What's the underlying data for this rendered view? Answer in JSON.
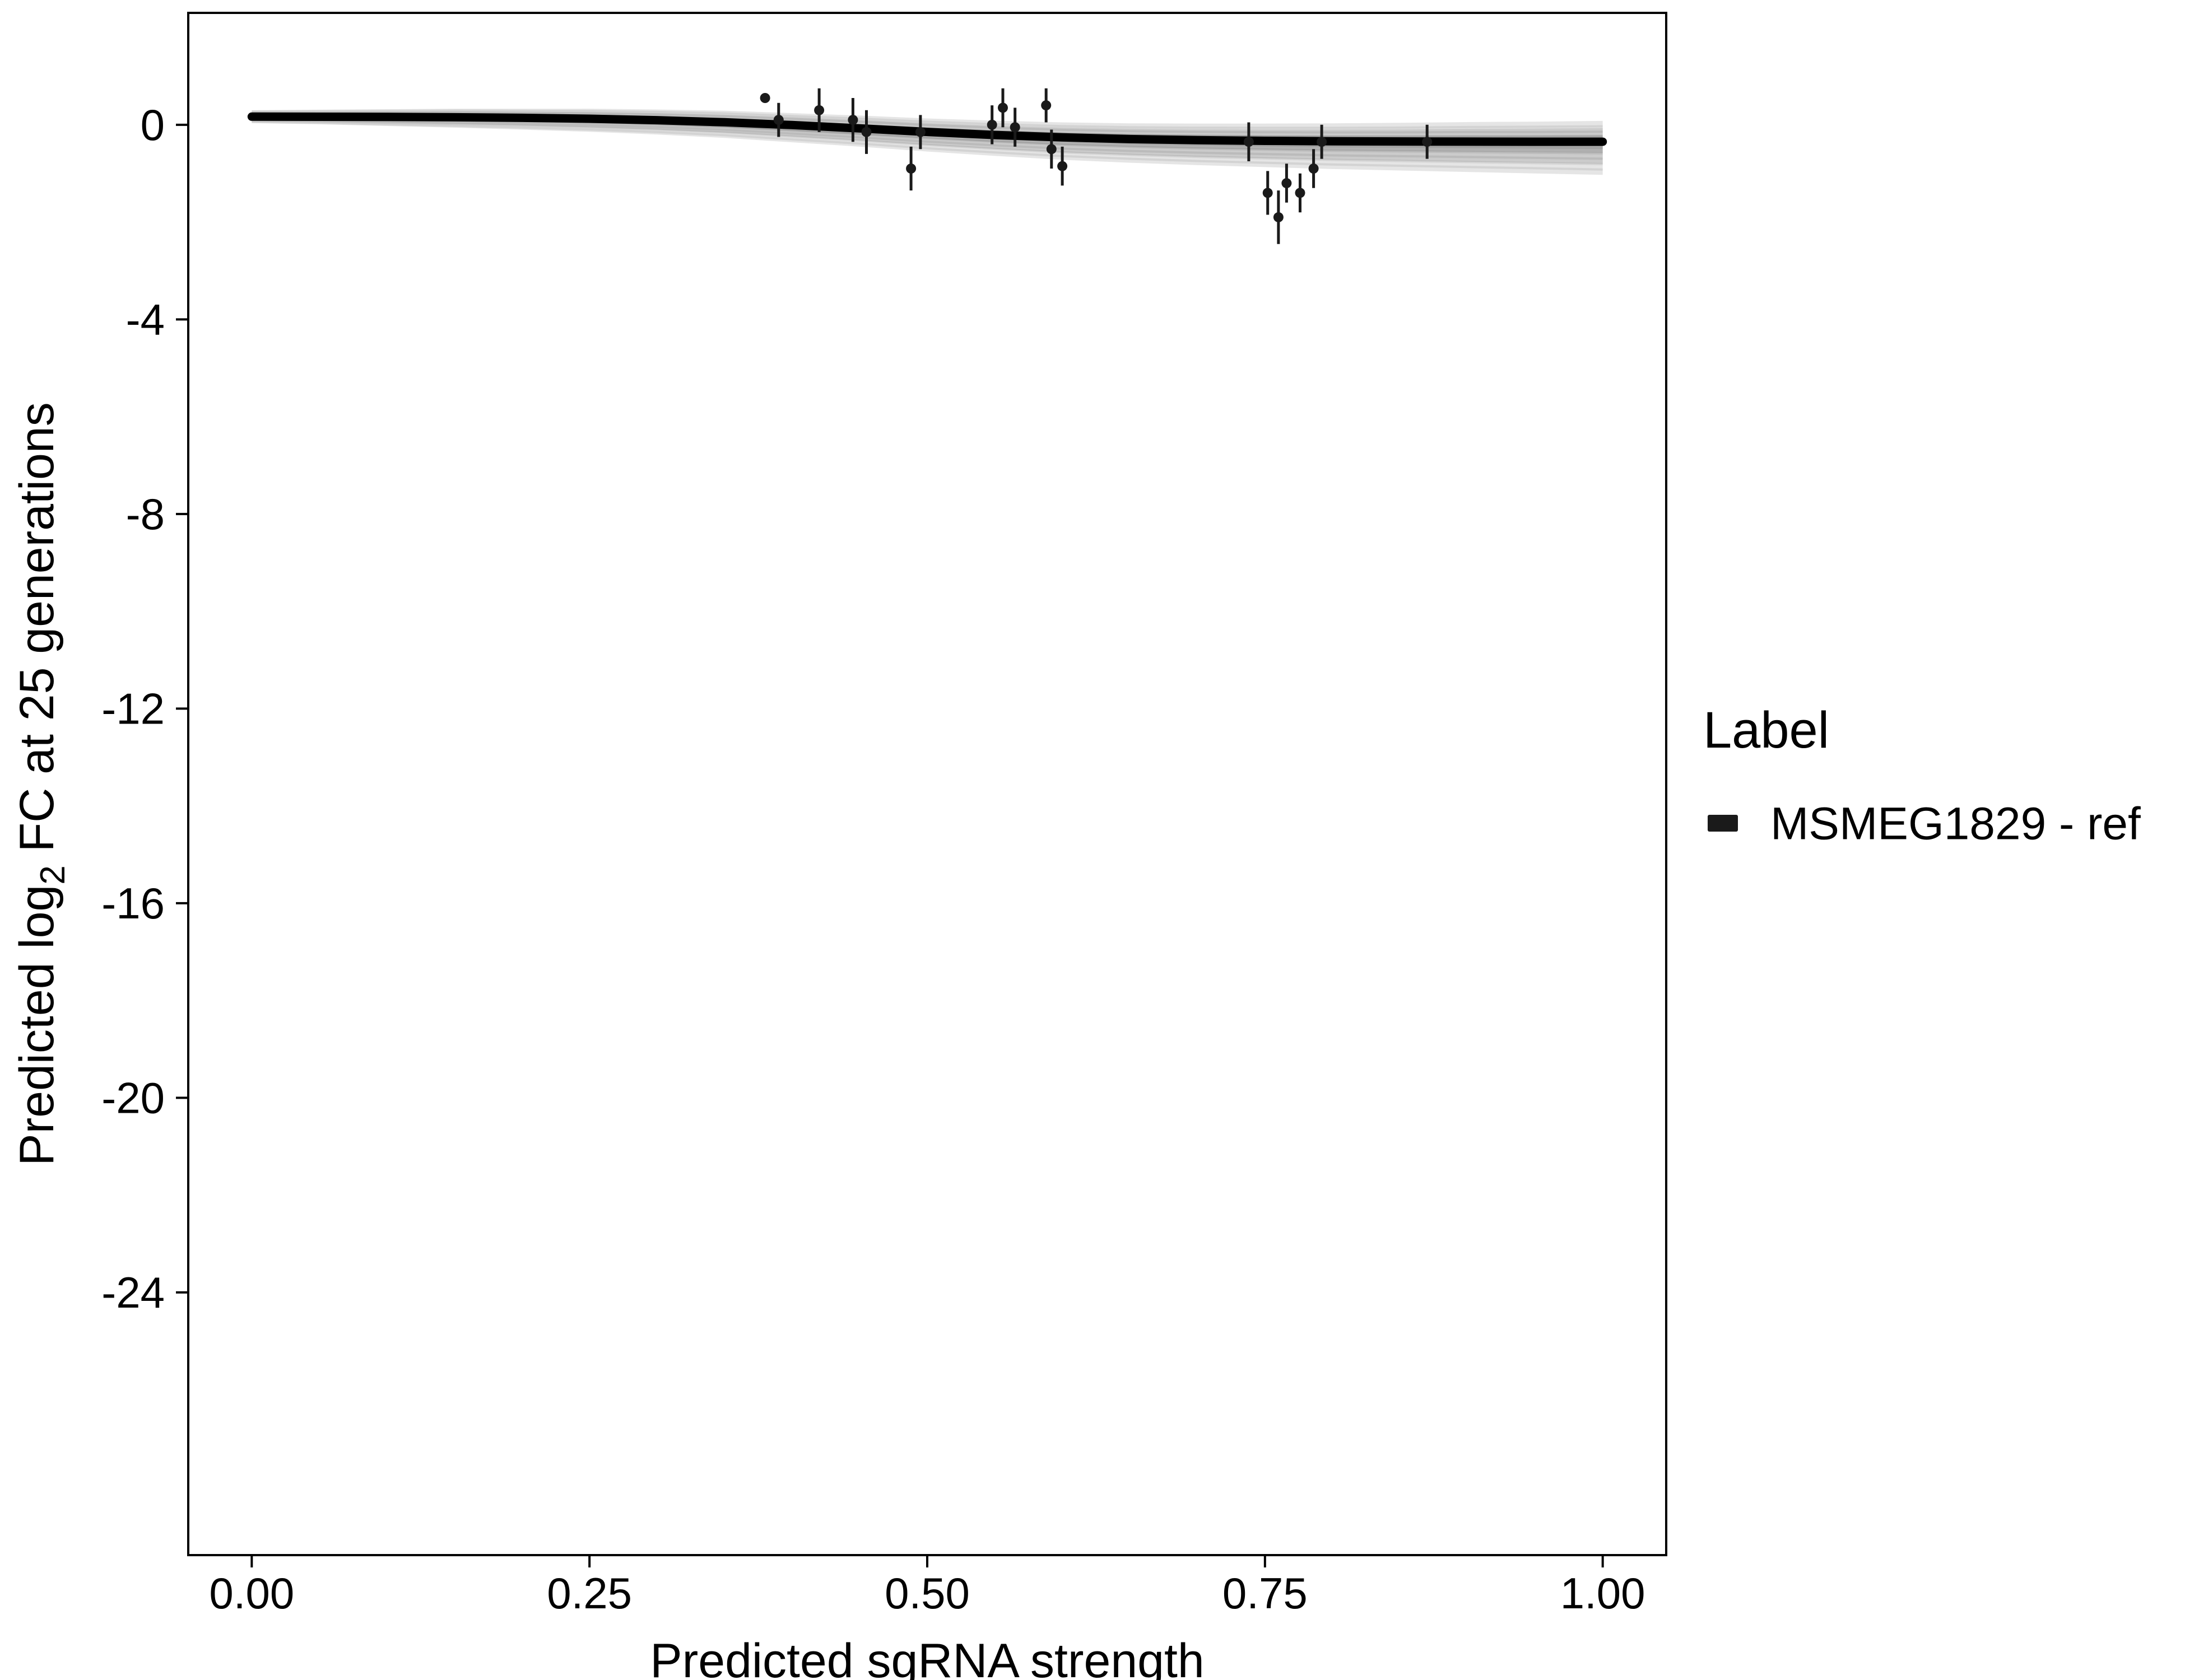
{
  "figure": {
    "background": "#ffffff",
    "panel_border_color": "#000000",
    "axis": {
      "x_title": "Predicted sgRNA strength",
      "y_title_pre": "Predicted  log",
      "y_title_sub": "2",
      "y_title_post": " FC at 25 generations"
    },
    "legend": {
      "title": "Label",
      "entries": [
        {
          "label": "MSMEG1829 - ref",
          "color": "#1a1a1a"
        }
      ]
    }
  },
  "chart_data": {
    "type": "scatter",
    "title": "",
    "xlabel": "Predicted sgRNA strength",
    "ylabel": "Predicted log2 FC at 25 generations",
    "legend_position": "right",
    "grid": false,
    "xlim": [
      -0.047,
      1.047
    ],
    "ylim": [
      -29.4,
      2.3
    ],
    "x_ticks": [
      0,
      0.25,
      0.5,
      0.75,
      1.0
    ],
    "x_tick_labels": [
      "0.00",
      "0.25",
      "0.50",
      "0.75",
      "1.00"
    ],
    "y_ticks": [
      0,
      -4,
      -8,
      -12,
      -16,
      -20,
      -24
    ],
    "y_tick_labels": [
      "0",
      "-4",
      "-8",
      "-12",
      "-16",
      "-20",
      "-24"
    ],
    "colors": {
      "point": "#1a1a1a",
      "line": "#000000",
      "band": "#000000"
    },
    "series": [
      {
        "name": "MSMEG1829 - ref",
        "points": [
          [
            0.38,
            0.55,
            0.55,
            0.55
          ],
          [
            0.39,
            0.1,
            -0.25,
            0.45
          ],
          [
            0.42,
            0.3,
            -0.15,
            0.75
          ],
          [
            0.445,
            0.1,
            -0.35,
            0.55
          ],
          [
            0.455,
            -0.15,
            -0.6,
            0.3
          ],
          [
            0.488,
            -0.9,
            -1.35,
            -0.45
          ],
          [
            0.495,
            -0.15,
            -0.5,
            0.2
          ],
          [
            0.548,
            0.0,
            -0.4,
            0.4
          ],
          [
            0.556,
            0.35,
            -0.05,
            0.75
          ],
          [
            0.565,
            -0.05,
            -0.45,
            0.35
          ],
          [
            0.588,
            0.4,
            0.05,
            0.75
          ],
          [
            0.592,
            -0.5,
            -0.9,
            -0.1
          ],
          [
            0.6,
            -0.85,
            -1.25,
            -0.45
          ],
          [
            0.738,
            -0.35,
            -0.75,
            0.05
          ],
          [
            0.752,
            -1.4,
            -1.85,
            -0.95
          ],
          [
            0.76,
            -1.9,
            -2.45,
            -1.35
          ],
          [
            0.766,
            -1.2,
            -1.6,
            -0.8
          ],
          [
            0.776,
            -1.4,
            -1.8,
            -1.0
          ],
          [
            0.786,
            -0.9,
            -1.3,
            -0.5
          ],
          [
            0.792,
            -0.35,
            -0.7,
            0.0
          ],
          [
            0.87,
            -0.35,
            -0.7,
            0.0
          ]
        ]
      }
    ],
    "fit_line": {
      "x": [
        0,
        0.05,
        0.1,
        0.15,
        0.2,
        0.25,
        0.3,
        0.35,
        0.4,
        0.45,
        0.5,
        0.55,
        0.6,
        0.65,
        0.7,
        0.75,
        0.8,
        0.85,
        0.9,
        0.95,
        1.0
      ],
      "y": [
        0.167,
        0.165,
        0.161,
        0.154,
        0.143,
        0.124,
        0.095,
        0.052,
        -0.006,
        -0.075,
        -0.147,
        -0.21,
        -0.259,
        -0.294,
        -0.316,
        -0.33,
        -0.338,
        -0.343,
        -0.346,
        -0.348,
        -0.349
      ]
    },
    "band": {
      "x": [
        0,
        0.05,
        0.1,
        0.15,
        0.2,
        0.25,
        0.3,
        0.35,
        0.4,
        0.45,
        0.5,
        0.55,
        0.6,
        0.65,
        0.7,
        0.75,
        0.8,
        0.85,
        0.9,
        0.95,
        1.0
      ],
      "upper": [
        0.3,
        0.31,
        0.32,
        0.33,
        0.33,
        0.33,
        0.315,
        0.29,
        0.24,
        0.19,
        0.13,
        0.085,
        0.05,
        0.03,
        0.025,
        0.025,
        0.03,
        0.04,
        0.055,
        0.065,
        0.08
      ],
      "lower": [
        0.035,
        0.01,
        -0.025,
        -0.06,
        -0.1,
        -0.145,
        -0.2,
        -0.27,
        -0.36,
        -0.45,
        -0.55,
        -0.64,
        -0.72,
        -0.78,
        -0.83,
        -0.87,
        -0.91,
        -0.94,
        -0.97,
        -1.0,
        -1.03
      ]
    }
  }
}
